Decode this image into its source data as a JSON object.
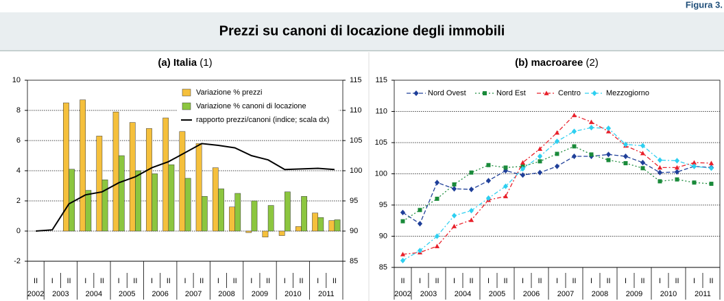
{
  "header": {
    "figure_label": "Figura 3.",
    "title": "Prezzi su canoni di locazione degli immobili"
  },
  "chart_data": [
    {
      "type": "bar",
      "title": "(a) Italia",
      "title_note": "(1)",
      "categories": [
        "II",
        "I",
        "II",
        "I",
        "II",
        "I",
        "II",
        "I",
        "II",
        "I",
        "II",
        "I",
        "II",
        "I",
        "II",
        "I",
        "II",
        "I",
        "II"
      ],
      "years": [
        "2002",
        "2003",
        "2004",
        "2005",
        "2006",
        "2007",
        "2008",
        "2009",
        "2010",
        "2011"
      ],
      "series": [
        {
          "name": "Variazione % prezzi",
          "color": "#f5c03c",
          "values": [
            null,
            null,
            8.5,
            8.7,
            6.3,
            7.9,
            7.2,
            6.8,
            7.5,
            6.6,
            5.8,
            4.2,
            1.6,
            -0.1,
            -0.4,
            -0.3,
            0.3,
            1.2,
            0.7
          ]
        },
        {
          "name": "Variazione % canoni di locazione",
          "color": "#8cc63f",
          "values": [
            null,
            null,
            4.1,
            2.7,
            3.4,
            5.0,
            4.0,
            3.8,
            4.4,
            3.5,
            2.3,
            2.8,
            2.5,
            2.0,
            1.7,
            2.6,
            2.3,
            0.9,
            0.75
          ]
        },
        {
          "name": "rapporto prezzi/canoni (indice; scala dx)",
          "color": "#000000",
          "type": "line",
          "axis": "y2",
          "values": [
            90,
            90.2,
            94.5,
            96,
            96.5,
            98,
            99,
            100.5,
            101.5,
            103,
            104.5,
            104.2,
            103.8,
            102.5,
            101.8,
            100.2,
            100.3,
            100.4,
            100.2
          ]
        }
      ],
      "ylim": [
        -2,
        10
      ],
      "yticks": [
        -2,
        0,
        2,
        4,
        6,
        8,
        10
      ],
      "y2lim": [
        85,
        115
      ],
      "y2ticks": [
        85,
        90,
        95,
        100,
        105,
        110,
        115
      ],
      "grid": true,
      "legend": "upper right"
    },
    {
      "type": "line",
      "title": "(b) macroaree",
      "title_note": "(2)",
      "categories": [
        "II",
        "I",
        "II",
        "I",
        "II",
        "I",
        "II",
        "I",
        "II",
        "I",
        "II",
        "I",
        "II",
        "I",
        "II",
        "I",
        "II",
        "I",
        "II"
      ],
      "years": [
        "2002",
        "2003",
        "2004",
        "2005",
        "2006",
        "2007",
        "2008",
        "2009",
        "2010",
        "2011"
      ],
      "series": [
        {
          "name": "Nord Ovest",
          "color": "#1f3f99",
          "marker": "diamond",
          "linestyle": "dashed",
          "values": [
            93.8,
            92,
            98.6,
            97.6,
            97.5,
            98.9,
            100.5,
            99.8,
            100.2,
            101.2,
            102.8,
            102.8,
            103.1,
            102.8,
            101.8,
            100.2,
            100.3,
            101.2,
            101.0
          ]
        },
        {
          "name": "Nord Est",
          "color": "#1a8a3a",
          "marker": "square",
          "linestyle": "dotted",
          "values": [
            92.4,
            94.2,
            96.0,
            98.3,
            100.2,
            101.4,
            101.0,
            101.2,
            102.0,
            103.2,
            104.4,
            103.1,
            102.2,
            101.7,
            100.9,
            98.8,
            99.1,
            98.6,
            98.4
          ]
        },
        {
          "name": "Centro",
          "color": "#e8202a",
          "marker": "triangle",
          "linestyle": "dashdot",
          "values": [
            87.1,
            87.4,
            88.4,
            91.6,
            92.6,
            95.8,
            96.4,
            101.8,
            104.0,
            106.6,
            109.4,
            108.3,
            106.8,
            104.5,
            103.3,
            101.0,
            101.0,
            101.8,
            101.7
          ]
        },
        {
          "name": "Mezzogiorno",
          "color": "#2ecff0",
          "marker": "diamond",
          "linestyle": "dashdot",
          "values": [
            86.1,
            87.7,
            90.0,
            93.3,
            94.1,
            96.1,
            98.0,
            100.8,
            102.8,
            105.2,
            106.8,
            107.4,
            107.3,
            104.7,
            104.5,
            102.2,
            102.1,
            101.2,
            100.9
          ]
        }
      ],
      "ylim": [
        85,
        115
      ],
      "yticks": [
        85,
        90,
        95,
        100,
        105,
        110,
        115
      ],
      "grid": true,
      "legend": "upper left"
    }
  ]
}
